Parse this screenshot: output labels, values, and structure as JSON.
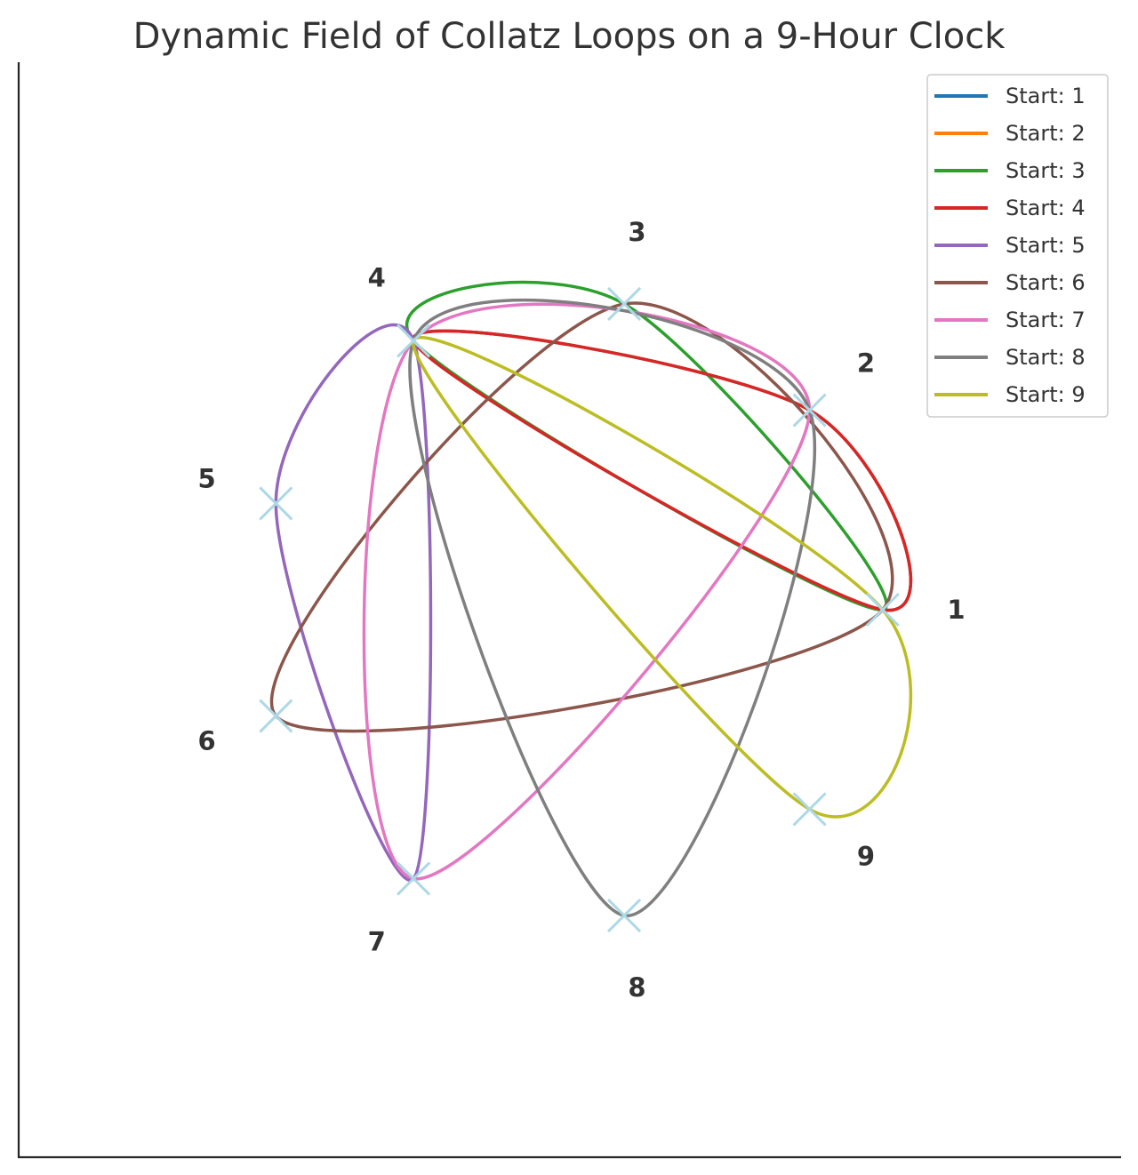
{
  "chart_data": {
    "type": "line",
    "title": "Dynamic Field of Collatz Loops on a 9-Hour Clock",
    "xlabel": "",
    "ylabel": "",
    "xlim": [
      -1.35,
      1.35
    ],
    "ylim": [
      -1.35,
      1.35
    ],
    "grid": false,
    "legend_placement": "top-right",
    "clock": {
      "marker_color": "#add8e6",
      "marker_symbol": "x",
      "label_color": "#333333",
      "hours": [
        {
          "label": "1",
          "x": 0.766,
          "y": 0.0
        },
        {
          "label": "2",
          "x": 0.587,
          "y": 0.492
        },
        {
          "label": "3",
          "x": 0.133,
          "y": 0.754
        },
        {
          "label": "4",
          "x": -0.383,
          "y": 0.663
        },
        {
          "label": "5",
          "x": -0.72,
          "y": 0.262
        },
        {
          "label": "6",
          "x": -0.72,
          "y": -0.262
        },
        {
          "label": "7",
          "x": -0.383,
          "y": -0.663
        },
        {
          "label": "8",
          "x": 0.133,
          "y": -0.754
        },
        {
          "label": "9",
          "x": 0.587,
          "y": -0.492
        }
      ]
    },
    "series": [
      {
        "name": "Start: 1",
        "color": "#1f77b4",
        "hours": [
          1,
          4,
          2
        ]
      },
      {
        "name": "Start: 2",
        "color": "#ff7f0e",
        "hours": [
          2,
          1,
          4
        ]
      },
      {
        "name": "Start: 3",
        "color": "#2ca02c",
        "hours": [
          3,
          1,
          4
        ]
      },
      {
        "name": "Start: 4",
        "color": "#d62728",
        "hours": [
          4,
          2,
          1
        ]
      },
      {
        "name": "Start: 5",
        "color": "#9467bd",
        "hours": [
          5,
          7,
          4
        ]
      },
      {
        "name": "Start: 6",
        "color": "#8c564b",
        "hours": [
          6,
          3,
          1
        ]
      },
      {
        "name": "Start: 7",
        "color": "#e377c2",
        "hours": [
          7,
          4,
          2
        ]
      },
      {
        "name": "Start: 8",
        "color": "#7f7f7f",
        "hours": [
          8,
          4,
          2
        ]
      },
      {
        "name": "Start: 9",
        "color": "#bcbd22",
        "hours": [
          9,
          1,
          4
        ]
      }
    ]
  }
}
